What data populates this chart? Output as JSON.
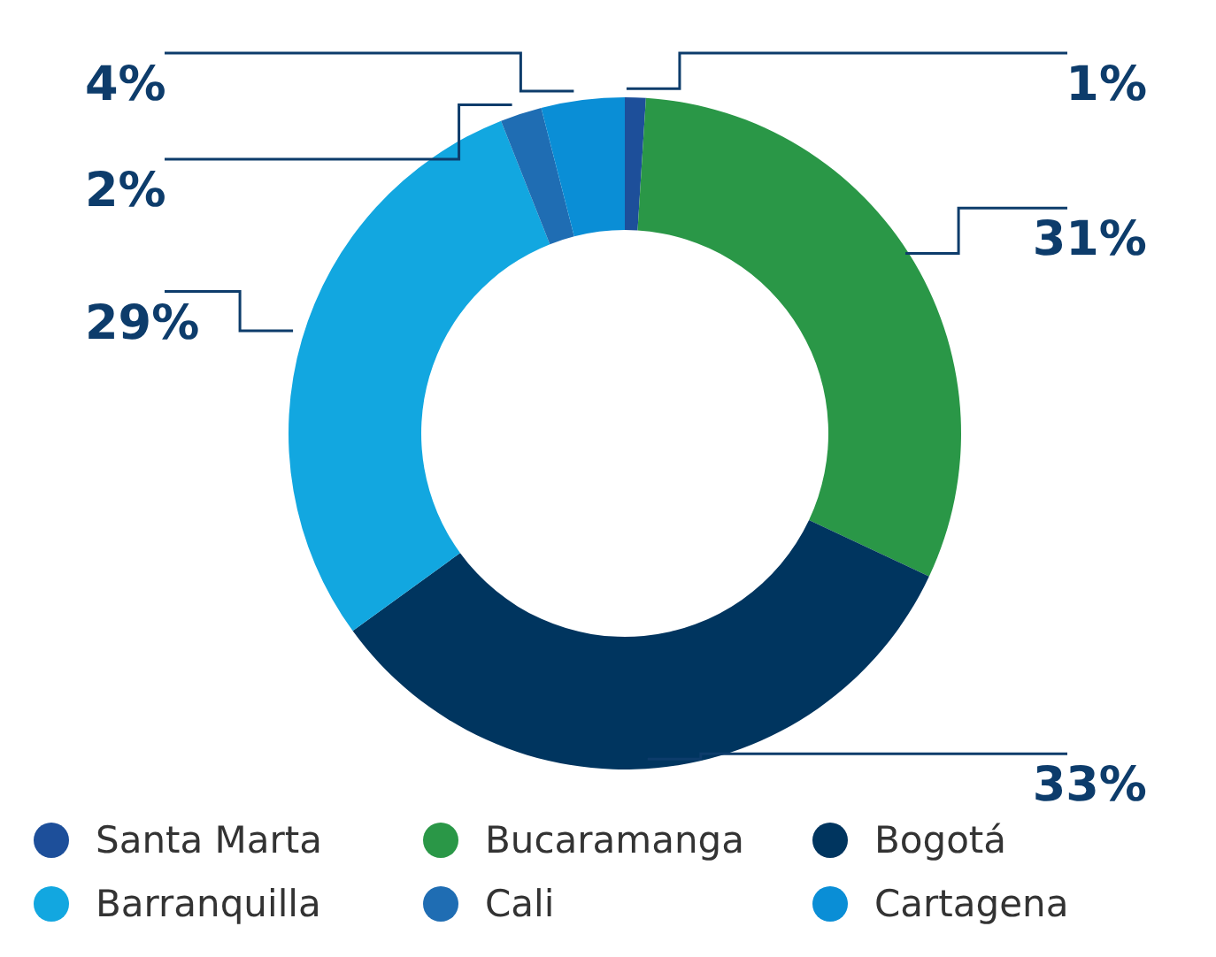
{
  "chart_data": {
    "type": "donut",
    "categories": [
      "Santa Marta",
      "Bucaramanga",
      "Bogotá",
      "Barranquilla",
      "Cali",
      "Cartagena"
    ],
    "values": [
      1,
      31,
      33,
      29,
      2,
      4
    ],
    "colors": [
      "#1d4f9a",
      "#2a9747",
      "#00355f",
      "#12a7e0",
      "#1f6db3",
      "#0a8ed6"
    ],
    "value_labels": [
      "1%",
      "31%",
      "33%",
      "29%",
      "2%",
      "4%"
    ],
    "legend": "bottom"
  }
}
